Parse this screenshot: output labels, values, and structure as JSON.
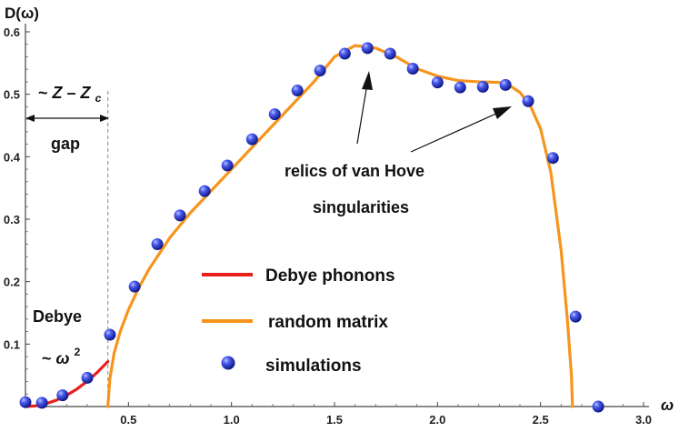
{
  "chart_data": {
    "type": "line",
    "xlabel": "ω",
    "ylabel": "D(ω)",
    "xlim": [
      0,
      3.0
    ],
    "ylim": [
      0,
      0.6
    ],
    "x_ticks": [
      {
        "value": 0.5,
        "label": "0.5"
      },
      {
        "value": 1.0,
        "label": "1.0"
      },
      {
        "value": 1.5,
        "label": "1.5"
      },
      {
        "value": 2.0,
        "label": "2.0"
      },
      {
        "value": 2.5,
        "label": "2.5"
      },
      {
        "value": 3.0,
        "label": "3.0"
      }
    ],
    "y_ticks": [
      {
        "value": 0.1,
        "label": "0.1"
      },
      {
        "value": 0.2,
        "label": "0.2"
      },
      {
        "value": 0.3,
        "label": "0.3"
      },
      {
        "value": 0.4,
        "label": "0.4"
      },
      {
        "value": 0.5,
        "label": "0.5"
      },
      {
        "value": 0.6,
        "label": "0.6"
      }
    ],
    "series": [
      {
        "name": "Debye phonons",
        "kind": "line",
        "color": "#e8201c",
        "x": [
          0.0,
          0.05,
          0.1,
          0.15,
          0.2,
          0.25,
          0.3,
          0.35,
          0.4
        ],
        "y": [
          0.0,
          0.0011,
          0.0045,
          0.0101,
          0.018,
          0.0281,
          0.0405,
          0.0551,
          0.072
        ]
      },
      {
        "name": "random matrix",
        "kind": "line",
        "color": "#f7941d",
        "x": [
          0.4,
          0.41,
          0.43,
          0.46,
          0.5,
          0.55,
          0.6,
          0.7,
          0.8,
          0.9,
          1.0,
          1.1,
          1.2,
          1.3,
          1.4,
          1.5,
          1.6,
          1.7,
          1.8,
          1.9,
          2.0,
          2.1,
          2.2,
          2.3,
          2.35,
          2.4,
          2.45,
          2.5,
          2.55,
          2.6,
          2.63,
          2.65,
          2.655
        ],
        "y": [
          0.0,
          0.045,
          0.085,
          0.12,
          0.155,
          0.19,
          0.22,
          0.27,
          0.31,
          0.345,
          0.38,
          0.415,
          0.45,
          0.485,
          0.52,
          0.56,
          0.578,
          0.574,
          0.56,
          0.541,
          0.529,
          0.522,
          0.52,
          0.519,
          0.514,
          0.503,
          0.482,
          0.445,
          0.375,
          0.25,
          0.14,
          0.05,
          0.0
        ]
      },
      {
        "name": "simulations",
        "kind": "scatter",
        "color": "#2233cc",
        "x": [
          0.0,
          0.08,
          0.18,
          0.3,
          0.41,
          0.53,
          0.64,
          0.75,
          0.87,
          0.98,
          1.1,
          1.21,
          1.32,
          1.43,
          1.55,
          1.66,
          1.77,
          1.88,
          2.0,
          2.11,
          2.22,
          2.33,
          2.44,
          2.56,
          2.67,
          2.78
        ],
        "y": [
          0.007,
          0.006,
          0.018,
          0.046,
          0.115,
          0.192,
          0.26,
          0.306,
          0.345,
          0.386,
          0.428,
          0.468,
          0.506,
          0.538,
          0.565,
          0.574,
          0.565,
          0.541,
          0.519,
          0.511,
          0.512,
          0.515,
          0.489,
          0.398,
          0.144,
          0.0
        ]
      }
    ],
    "reference_line": {
      "x": 0.4,
      "style": "dashed",
      "color": "#999999"
    },
    "annotations": [
      {
        "id": "zc",
        "parts": [
          "~ ",
          "Z",
          " – ",
          "Z",
          "c"
        ]
      },
      {
        "id": "gap",
        "text": "gap"
      },
      {
        "id": "debye",
        "text": "Debye"
      },
      {
        "id": "w2",
        "parts": [
          "~ ",
          "ω",
          "2"
        ]
      },
      {
        "id": "relics",
        "lines": [
          "relics of van Hove",
          "singularities"
        ]
      }
    ],
    "legend": {
      "placement": "center-bottom"
    }
  }
}
